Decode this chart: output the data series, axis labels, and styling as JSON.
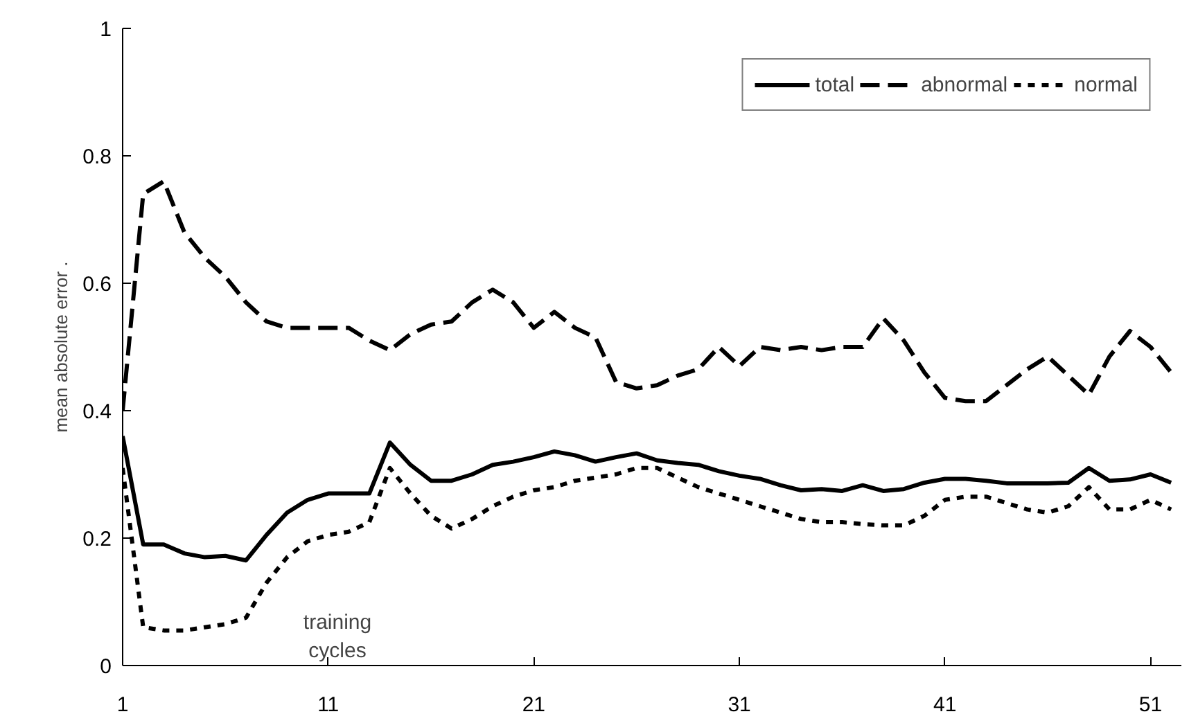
{
  "chart_data": {
    "type": "line",
    "xlabel": "training cycles",
    "ylabel": "mean absolute error .",
    "x": [
      1,
      2,
      3,
      4,
      5,
      6,
      7,
      8,
      9,
      10,
      11,
      12,
      13,
      14,
      15,
      16,
      17,
      18,
      19,
      20,
      21,
      22,
      23,
      24,
      25,
      26,
      27,
      28,
      29,
      30,
      31,
      32,
      33,
      34,
      35,
      36,
      37,
      38,
      39,
      40,
      41,
      42,
      43,
      44,
      45,
      46,
      47,
      48,
      49,
      50,
      51,
      52
    ],
    "series": [
      {
        "name": "total",
        "color": "#000000",
        "line_style": "solid",
        "values": [
          0.36,
          0.19,
          0.19,
          0.176,
          0.17,
          0.172,
          0.165,
          0.205,
          0.24,
          0.26,
          0.27,
          0.27,
          0.27,
          0.35,
          0.315,
          0.29,
          0.29,
          0.3,
          0.315,
          0.32,
          0.327,
          0.336,
          0.33,
          0.32,
          0.327,
          0.333,
          0.322,
          0.318,
          0.315,
          0.305,
          0.298,
          0.293,
          0.283,
          0.275,
          0.277,
          0.274,
          0.283,
          0.274,
          0.277,
          0.287,
          0.293,
          0.293,
          0.29,
          0.286,
          0.286,
          0.286,
          0.287,
          0.31,
          0.29,
          0.292,
          0.3,
          0.287
        ]
      },
      {
        "name": "abnormal",
        "color": "#000000",
        "line_style": "dashed",
        "values": [
          0.4,
          0.74,
          0.76,
          0.68,
          0.64,
          0.61,
          0.57,
          0.54,
          0.53,
          0.53,
          0.53,
          0.53,
          0.51,
          0.495,
          0.52,
          0.535,
          0.54,
          0.57,
          0.59,
          0.57,
          0.53,
          0.555,
          0.53,
          0.515,
          0.445,
          0.435,
          0.44,
          0.455,
          0.465,
          0.5,
          0.47,
          0.5,
          0.495,
          0.5,
          0.495,
          0.5,
          0.5,
          0.545,
          0.51,
          0.46,
          0.42,
          0.415,
          0.415,
          0.44,
          0.465,
          0.485,
          0.455,
          0.425,
          0.485,
          0.525,
          0.5,
          0.46
        ]
      },
      {
        "name": "normal",
        "color": "#000000",
        "line_style": "dotted",
        "values": [
          0.31,
          0.06,
          0.055,
          0.055,
          0.06,
          0.065,
          0.075,
          0.13,
          0.17,
          0.195,
          0.205,
          0.21,
          0.225,
          0.31,
          0.27,
          0.235,
          0.215,
          0.23,
          0.25,
          0.265,
          0.275,
          0.28,
          0.29,
          0.295,
          0.3,
          0.31,
          0.31,
          0.295,
          0.28,
          0.27,
          0.26,
          0.25,
          0.24,
          0.23,
          0.225,
          0.225,
          0.222,
          0.22,
          0.22,
          0.235,
          0.26,
          0.265,
          0.265,
          0.255,
          0.245,
          0.24,
          0.25,
          0.28,
          0.245,
          0.245,
          0.26,
          0.245
        ]
      }
    ],
    "xlim": [
      1,
      52.5
    ],
    "xticks": [
      1,
      11,
      21,
      31,
      41,
      51
    ],
    "ylim": [
      0,
      1
    ],
    "yticks": [
      0,
      0.2,
      0.4,
      0.6,
      0.8,
      1
    ],
    "legend": "top right",
    "grid": false,
    "marker": "none"
  }
}
